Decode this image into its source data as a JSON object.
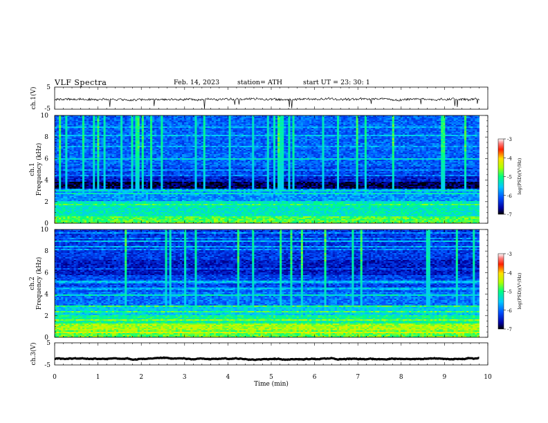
{
  "header": {
    "title": "VLF  Spectra",
    "date": "Feb. 14, 2023",
    "station": "station= ATH",
    "start_ut": "start  UT  =    23: 30: 1"
  },
  "chart_data": [
    {
      "type": "line",
      "panel": "ch1-waveform",
      "ylabel": "ch.1(V)",
      "ylim": [
        -5,
        5
      ],
      "yticks": [
        "5",
        "-5"
      ],
      "xlim": [
        0,
        10
      ],
      "data_end_min": 9.8,
      "series": [
        {
          "color": "#000000",
          "baseline": -0.5
        }
      ]
    },
    {
      "type": "heatmap",
      "panel": "ch1-spectrogram",
      "ylabel_top": "ch.1",
      "ylabel": "Frequency  (kHz)",
      "ylim": [
        0,
        10
      ],
      "yticks": [
        "0",
        "2",
        "4",
        "6",
        "8",
        "10"
      ],
      "xlim": [
        0,
        10
      ],
      "data_end_min": 9.8,
      "colorbar": {
        "label": "log(PSD)(V²/Hz)",
        "ticks": [
          "-3",
          "-4",
          "-5",
          "-6",
          "-7"
        ],
        "range": [
          -7,
          -3
        ]
      }
    },
    {
      "type": "heatmap",
      "panel": "ch2-spectrogram",
      "ylabel_top": "ch.2",
      "ylabel": "Frequency  (kHz)",
      "ylim": [
        0,
        10
      ],
      "yticks": [
        "0",
        "2",
        "4",
        "6",
        "8",
        "10"
      ],
      "xlim": [
        0,
        10
      ],
      "data_end_min": 9.8,
      "colorbar": {
        "label": "log(PSD)(V²/Hz)",
        "ticks": [
          "-3",
          "-4",
          "-5",
          "-6",
          "-7"
        ],
        "range": [
          -7,
          -3
        ]
      }
    },
    {
      "type": "line",
      "panel": "ch3-waveform",
      "ylabel": "ch.3(V)",
      "ylim": [
        -5,
        5
      ],
      "yticks": [
        "5",
        "-5"
      ],
      "xlim": [
        0,
        10
      ],
      "xlabel": "Time  (min)",
      "xticks": [
        "0",
        "1",
        "2",
        "3",
        "4",
        "5",
        "6",
        "7",
        "8",
        "9",
        "10"
      ],
      "data_end_min": 9.8,
      "series": [
        {
          "color": "#000000",
          "baseline": -2.2
        }
      ]
    }
  ]
}
